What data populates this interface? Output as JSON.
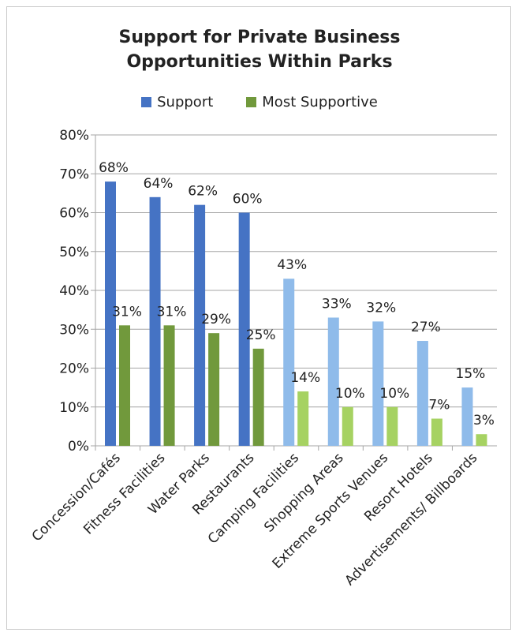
{
  "chart_data": {
    "type": "bar",
    "title": "Support for Private Business Opportunities Within Parks",
    "title_lines": [
      "Support for Private Business",
      "Opportunities Within Parks"
    ],
    "categories": [
      "Concession/Cafés",
      "Fitness Facilities",
      "Water Parks",
      "Restaurants",
      "Camping Facilities",
      "Shopping Areas",
      "Extreme Sports Venues",
      "Resort Hotels",
      "Advertisements/ Billboards"
    ],
    "series": [
      {
        "name": "Support",
        "values": [
          68,
          64,
          62,
          60,
          43,
          33,
          32,
          27,
          15
        ],
        "labels": [
          "68%",
          "64%",
          "62%",
          "60%",
          "43%",
          "33%",
          "32%",
          "27%",
          "15%"
        ]
      },
      {
        "name": "Most Supportive",
        "values": [
          31,
          31,
          29,
          25,
          14,
          10,
          10,
          7,
          3
        ],
        "labels": [
          "31%",
          "31%",
          "29%",
          "25%",
          "14%",
          "10%",
          "10%",
          "7%",
          "3%"
        ]
      }
    ],
    "y_ticks": [
      "0%",
      "10%",
      "20%",
      "30%",
      "40%",
      "50%",
      "60%",
      "70%",
      "80%"
    ],
    "ylim": [
      0,
      80
    ],
    "grid": true,
    "legend_position": "top",
    "colors": {
      "support_dark": "#4573c4",
      "support_light": "#8fbbea",
      "most_dark": "#71993c",
      "most_light": "#a6d262",
      "grid": "#a6a6a6"
    },
    "highlight_first_n": 4
  }
}
